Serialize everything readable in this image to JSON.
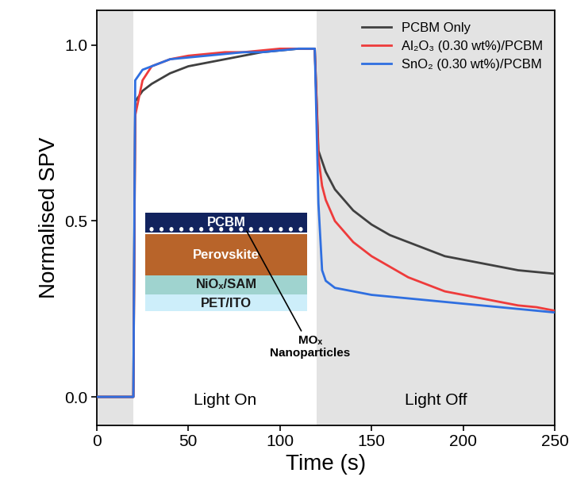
{
  "chart_data": {
    "type": "line",
    "x_label": "Time (s)",
    "y_label": "Normalised SPV",
    "xlim": [
      0,
      250
    ],
    "xticks": [
      0,
      50,
      100,
      150,
      200,
      250
    ],
    "ylim": [
      -0.08,
      1.1
    ],
    "yticks": [
      0.0,
      0.5,
      1.0
    ],
    "legend": "upper right",
    "x": [
      0,
      10,
      20,
      21,
      25,
      30,
      40,
      50,
      60,
      70,
      80,
      90,
      100,
      110,
      119,
      121,
      123,
      125,
      130,
      140,
      150,
      160,
      170,
      180,
      190,
      200,
      210,
      220,
      230,
      240,
      250
    ],
    "series": [
      {
        "name": "PCBM Only",
        "color": "#404040",
        "values": [
          0,
          0,
          0,
          0.84,
          0.87,
          0.89,
          0.92,
          0.94,
          0.95,
          0.96,
          0.97,
          0.98,
          0.985,
          0.99,
          0.99,
          0.7,
          0.67,
          0.64,
          0.59,
          0.53,
          0.49,
          0.46,
          0.44,
          0.42,
          0.4,
          0.39,
          0.38,
          0.37,
          0.36,
          0.355,
          0.35
        ]
      },
      {
        "name": "Al₂O₃ (0.30 wt%)/PCBM",
        "color": "#ee3b3b",
        "values": [
          0,
          0,
          0,
          0.8,
          0.9,
          0.94,
          0.96,
          0.97,
          0.975,
          0.98,
          0.98,
          0.985,
          0.99,
          0.99,
          0.99,
          0.68,
          0.6,
          0.56,
          0.5,
          0.44,
          0.4,
          0.37,
          0.34,
          0.32,
          0.3,
          0.29,
          0.28,
          0.27,
          0.26,
          0.255,
          0.245
        ]
      },
      {
        "name": "SnO₂ (0.30 wt%)/PCBM",
        "color": "#2f6fe0",
        "values": [
          0,
          0,
          0,
          0.9,
          0.93,
          0.94,
          0.96,
          0.965,
          0.97,
          0.975,
          0.98,
          0.98,
          0.985,
          0.99,
          0.99,
          0.55,
          0.36,
          0.33,
          0.31,
          0.3,
          0.29,
          0.285,
          0.28,
          0.275,
          0.27,
          0.265,
          0.26,
          0.255,
          0.25,
          0.245,
          0.24
        ]
      }
    ],
    "phases": [
      {
        "start": 0,
        "end": 20,
        "shaded": true
      },
      {
        "start": 20,
        "end": 120,
        "shaded": false,
        "label": "Light On"
      },
      {
        "start": 120,
        "end": 250,
        "shaded": true,
        "label": "Light Off"
      }
    ],
    "inset": {
      "layers": [
        {
          "label": "PCBM",
          "color": "#12235e"
        },
        {
          "label": "Perovskite",
          "color": "#b8642a"
        },
        {
          "label": "NiOₓ/SAM",
          "color": "#9fd3cf"
        },
        {
          "label": "PET/ITO",
          "color": "#cdeefa"
        }
      ],
      "annotation": "MOₓ\nNanoparticles"
    }
  }
}
